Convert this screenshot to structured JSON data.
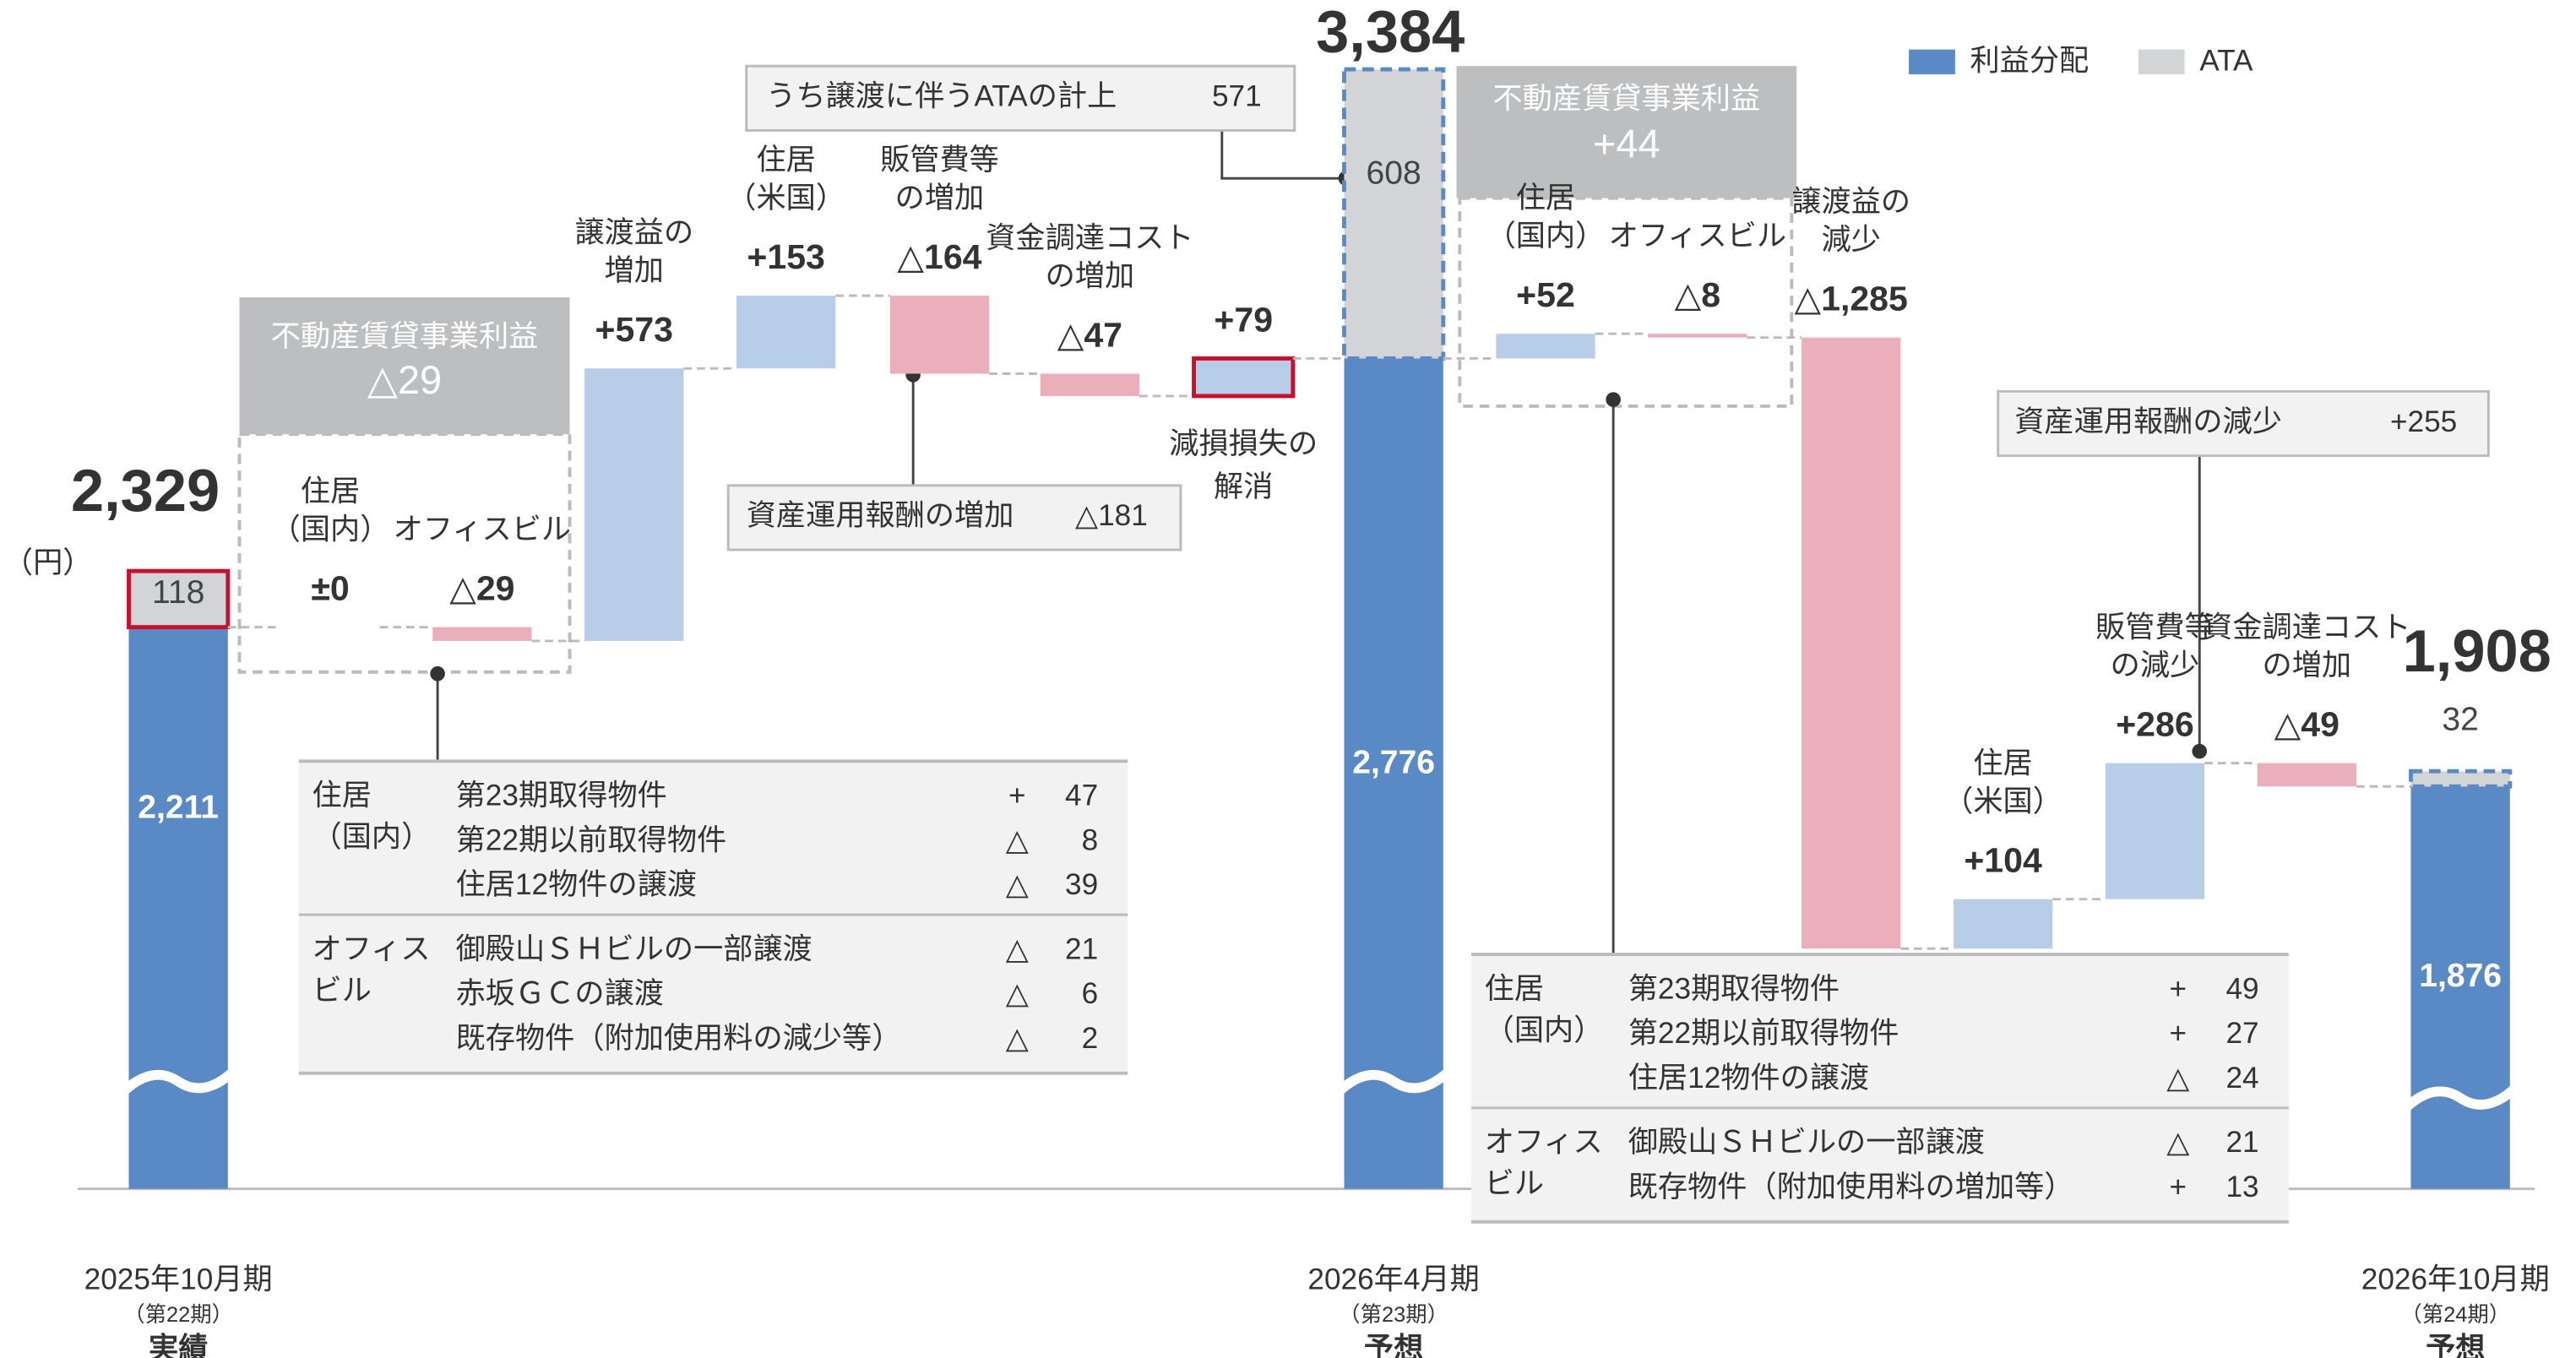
{
  "chart_data": {
    "type": "waterfall",
    "unit": "（円）",
    "series": [
      {
        "name": "利益分配",
        "color": "#5a8ac6"
      },
      {
        "name": "ATA",
        "color": "#d3d4d6"
      }
    ],
    "increase_color": "#b8cde7",
    "decrease_color": "#eaafba",
    "totals": [
      {
        "label": [
          "2025年10月期",
          "（第22期）",
          "実績"
        ],
        "value": 2329,
        "value_label": "2,329",
        "segments": [
          {
            "value": 2211,
            "value_label": "2,211"
          },
          {
            "value": 118,
            "highlight": true
          }
        ]
      },
      {
        "label": [
          "2026年4月期",
          "（第23期）",
          "予想"
        ],
        "value": 3384,
        "value_label": "3,384",
        "segments": [
          {
            "value": 2776,
            "value_label": "2,776"
          },
          {
            "value": 608,
            "outline": "dashed"
          }
        ]
      },
      {
        "label": [
          "2026年10月期",
          "（第24期）",
          "予想"
        ],
        "value": 1908,
        "value_label": "1,908",
        "segments": [
          {
            "value": 1876,
            "value_label": "1,876"
          },
          {
            "value": 32,
            "outline": "dashed"
          }
        ]
      }
    ],
    "steps": [
      [
        {
          "label": [
            "住居",
            "（国内）"
          ],
          "value": 0,
          "value_label": "±0"
        },
        {
          "label": [
            "オフィスビル"
          ],
          "value": -29,
          "value_label": "△29"
        },
        {
          "label": [
            "譲渡益の",
            "増加"
          ],
          "value": 573,
          "value_label": "+573"
        },
        {
          "label": [
            "住居",
            "（米国）"
          ],
          "value": 153,
          "value_label": "+153"
        },
        {
          "label": [
            "販管費等",
            "の増加"
          ],
          "value": -164,
          "value_label": "△164"
        },
        {
          "label": [
            "資金調達コスト",
            "の増加"
          ],
          "value": -47,
          "value_label": "△47"
        },
        {
          "label": [
            "減損損失の",
            "解消"
          ],
          "value": 79,
          "value_label": "+79",
          "highlight": true
        }
      ],
      [
        {
          "label": [
            "住居",
            "（国内）"
          ],
          "value": 52,
          "value_label": "+52"
        },
        {
          "label": [
            "オフィスビル"
          ],
          "value": -8,
          "value_label": "△8"
        },
        {
          "label": [
            "譲渡益の",
            "減少"
          ],
          "value": -1285,
          "value_label": "△1,285"
        },
        {
          "label": [
            "住居",
            "（米国）"
          ],
          "value": 104,
          "value_label": "+104"
        },
        {
          "label": [
            "販管費等",
            "の減少"
          ],
          "value": 286,
          "value_label": "+286"
        },
        {
          "label": [
            "資金調達コスト",
            "の増加"
          ],
          "value": -49,
          "value_label": "△49"
        }
      ]
    ],
    "groups": [
      {
        "title": "不動産賃貸事業利益",
        "value": -29,
        "value_label": "△29"
      },
      {
        "title": "不動産賃貸事業利益",
        "value": 44,
        "value_label": "+44"
      }
    ],
    "callouts": [
      {
        "text": "うち譲渡に伴うATAの計上",
        "value": 571
      },
      {
        "text": "資産運用報酬の増加",
        "value": -181,
        "value_label": "△181"
      },
      {
        "text": "資産運用報酬の減少",
        "value": 255,
        "value_label": "+255"
      }
    ],
    "tables": [
      {
        "groups": [
          {
            "label": [
              "住居",
              "（国内）"
            ],
            "rows": [
              {
                "name": "第23期取得物件",
                "sign": "+",
                "value": 47
              },
              {
                "name": "第22期以前取得物件",
                "sign": "△",
                "value": 8
              },
              {
                "name": "住居12物件の譲渡",
                "sign": "△",
                "value": 39
              }
            ]
          },
          {
            "label": [
              "オフィス",
              "ビル"
            ],
            "rows": [
              {
                "name": "御殿山ＳＨビルの一部譲渡",
                "sign": "△",
                "value": 21
              },
              {
                "name": "赤坂ＧＣの譲渡",
                "sign": "△",
                "value": 6
              },
              {
                "name": "既存物件（附加使用料の減少等）",
                "sign": "△",
                "value": 2
              }
            ]
          }
        ]
      },
      {
        "groups": [
          {
            "label": [
              "住居",
              "（国内）"
            ],
            "rows": [
              {
                "name": "第23期取得物件",
                "sign": "+",
                "value": 49
              },
              {
                "name": "第22期以前取得物件",
                "sign": "+",
                "value": 27
              },
              {
                "name": "住居12物件の譲渡",
                "sign": "△",
                "value": 24
              }
            ]
          },
          {
            "label": [
              "オフィス",
              "ビル"
            ],
            "rows": [
              {
                "name": "御殿山ＳＨビルの一部譲渡",
                "sign": "△",
                "value": 21
              },
              {
                "name": "既存物件（附加使用料の増加等）",
                "sign": "+",
                "value": 13
              }
            ]
          }
        ]
      }
    ]
  }
}
